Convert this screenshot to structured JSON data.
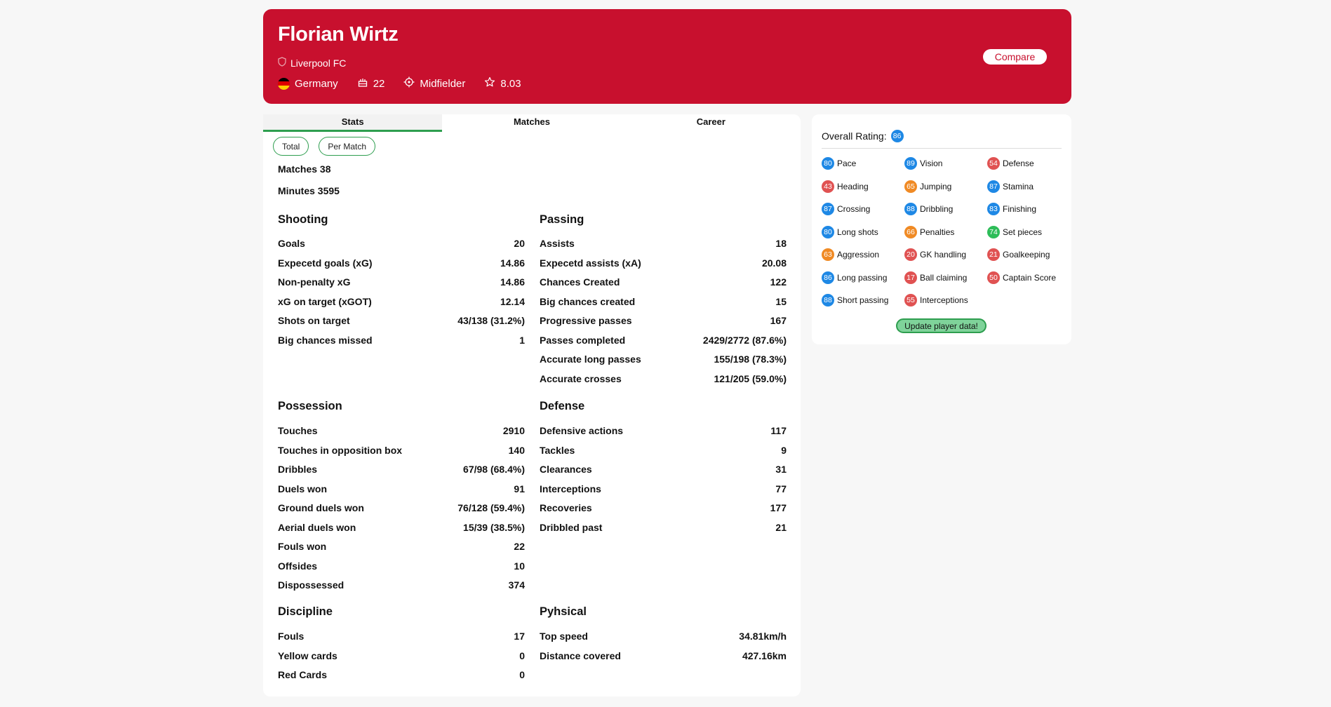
{
  "player": {
    "name": "Florian Wirtz",
    "club": "Liverpool FC",
    "country": "Germany",
    "age": "22",
    "position": "Midfielder",
    "rating": "8.03",
    "compare_label": "Compare"
  },
  "tabs": [
    "Stats",
    "Matches",
    "Career"
  ],
  "toggles": [
    "Total",
    "Per Match"
  ],
  "summary": {
    "matches": "Matches 38",
    "minutes": "Minutes 3595"
  },
  "sections": {
    "shooting": {
      "title": "Shooting",
      "rows": [
        {
          "label": "Goals",
          "value": "20"
        },
        {
          "label": "Expecetd goals (xG)",
          "value": "14.86"
        },
        {
          "label": "Non-penalty xG",
          "value": "14.86"
        },
        {
          "label": "xG on target (xGOT)",
          "value": "12.14"
        },
        {
          "label": "Shots on target",
          "value": "43/138 (31.2%)"
        },
        {
          "label": "Big chances missed",
          "value": "1"
        }
      ]
    },
    "passing": {
      "title": "Passing",
      "rows": [
        {
          "label": "Assists",
          "value": "18"
        },
        {
          "label": "Expecetd assists (xA)",
          "value": "20.08"
        },
        {
          "label": "Chances Created",
          "value": "122"
        },
        {
          "label": "Big chances created",
          "value": "15"
        },
        {
          "label": "Progressive passes",
          "value": "167"
        },
        {
          "label": "Passes completed",
          "value": "2429/2772 (87.6%)"
        },
        {
          "label": "Accurate long passes",
          "value": "155/198 (78.3%)"
        },
        {
          "label": "Accurate crosses",
          "value": "121/205 (59.0%)"
        }
      ]
    },
    "possession": {
      "title": "Possession",
      "rows": [
        {
          "label": "Touches",
          "value": "2910"
        },
        {
          "label": "Touches in opposition box",
          "value": "140"
        },
        {
          "label": "Dribbles",
          "value": "67/98 (68.4%)"
        },
        {
          "label": "Duels won",
          "value": "91"
        },
        {
          "label": "Ground duels won",
          "value": "76/128 (59.4%)"
        },
        {
          "label": "Aerial duels won",
          "value": "15/39 (38.5%)"
        },
        {
          "label": "Fouls won",
          "value": "22"
        },
        {
          "label": "Offsides",
          "value": "10"
        },
        {
          "label": "Dispossessed",
          "value": "374"
        }
      ]
    },
    "defense": {
      "title": "Defense",
      "rows": [
        {
          "label": "Defensive actions",
          "value": "117"
        },
        {
          "label": "Tackles",
          "value": "9"
        },
        {
          "label": "Clearances",
          "value": "31"
        },
        {
          "label": "Interceptions",
          "value": "77"
        },
        {
          "label": "Recoveries",
          "value": "177"
        },
        {
          "label": "Dribbled past",
          "value": "21"
        }
      ]
    },
    "discipline": {
      "title": "Discipline",
      "rows": [
        {
          "label": "Fouls",
          "value": "17"
        },
        {
          "label": "Yellow cards",
          "value": "0"
        },
        {
          "label": "Red Cards",
          "value": "0"
        }
      ]
    },
    "physical": {
      "title": "Pyhsical",
      "rows": [
        {
          "label": "Top speed",
          "value": "34.81km/h"
        },
        {
          "label": "Distance covered",
          "value": "427.16km"
        }
      ]
    }
  },
  "ratings": {
    "overall_label": "Overall Rating:",
    "overall_value": "86",
    "attributes": [
      {
        "name": "Pace",
        "value": "80",
        "color": "#1e88e5"
      },
      {
        "name": "Vision",
        "value": "89",
        "color": "#1e88e5"
      },
      {
        "name": "Defense",
        "value": "54",
        "color": "#e05252"
      },
      {
        "name": "Heading",
        "value": "43",
        "color": "#e05252"
      },
      {
        "name": "Jumping",
        "value": "65",
        "color": "#f08a24"
      },
      {
        "name": "Stamina",
        "value": "87",
        "color": "#1e88e5"
      },
      {
        "name": "Crossing",
        "value": "87",
        "color": "#1e88e5"
      },
      {
        "name": "Dribbling",
        "value": "88",
        "color": "#1e88e5"
      },
      {
        "name": "Finishing",
        "value": "83",
        "color": "#1e88e5"
      },
      {
        "name": "Long shots",
        "value": "80",
        "color": "#1e88e5"
      },
      {
        "name": "Penalties",
        "value": "66",
        "color": "#f08a24"
      },
      {
        "name": "Set pieces",
        "value": "74",
        "color": "#2ebd59"
      },
      {
        "name": "Aggression",
        "value": "63",
        "color": "#f08a24"
      },
      {
        "name": "GK handling",
        "value": "20",
        "color": "#e05252"
      },
      {
        "name": "Goalkeeping",
        "value": "21",
        "color": "#e05252"
      },
      {
        "name": "Long passing",
        "value": "86",
        "color": "#1e88e5"
      },
      {
        "name": "Ball claiming",
        "value": "17",
        "color": "#e05252"
      },
      {
        "name": "Captain Score",
        "value": "50",
        "color": "#e05252"
      },
      {
        "name": "Short passing",
        "value": "88",
        "color": "#1e88e5"
      },
      {
        "name": "Interceptions",
        "value": "55",
        "color": "#e05252"
      }
    ],
    "update_label": "Update player data!"
  },
  "colors": {
    "brand": "#c8102e",
    "accent_green": "#2e9e4f",
    "badge_blue": "#1e88e5",
    "badge_red": "#e05252",
    "badge_orange": "#f08a24",
    "badge_green": "#2ebd59"
  },
  "icons": [
    "shield-icon",
    "germany-flag-icon",
    "cake-icon",
    "crosshair-icon",
    "star-icon"
  ]
}
